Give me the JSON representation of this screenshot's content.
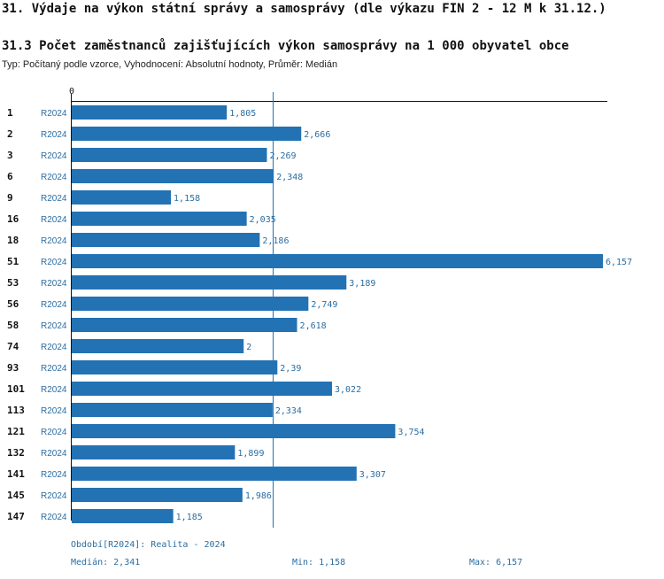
{
  "page": {
    "title": "31. Výdaje na výkon státní správy a samosprávy (dle výkazu FIN 2 - 12 M k 31.12.)",
    "subtitle": "31.3 Počet zaměstnanců zajišťujících výkon samosprávy na 1 000 obyvatel obce",
    "type_line": "Typ: Počítaný podle vzorce, Vyhodnocení: Absolutní hodnoty, Průměr: Medián"
  },
  "colors": {
    "bar": "#2272b4",
    "period_text": "#2a6ea3",
    "median_line": "#2272b4"
  },
  "chart_data": {
    "type": "bar",
    "orientation": "horizontal",
    "axis_zero_label": "0",
    "series_name": "R2024",
    "categories": [
      "1",
      "2",
      "3",
      "6",
      "9",
      "16",
      "18",
      "51",
      "53",
      "56",
      "58",
      "74",
      "93",
      "101",
      "113",
      "121",
      "132",
      "141",
      "145",
      "147"
    ],
    "values": [
      1.805,
      2.666,
      2.269,
      2.348,
      1.158,
      2.035,
      2.186,
      6.157,
      3.189,
      2.749,
      2.618,
      2.0,
      2.39,
      3.022,
      2.334,
      3.754,
      1.899,
      3.307,
      1.986,
      1.185
    ],
    "value_labels": [
      "1,805",
      "2,666",
      "2,269",
      "2,348",
      "1,158",
      "2,035",
      "2,186",
      "6,157",
      "3,189",
      "2,749",
      "2,618",
      "2",
      "2,39",
      "3,022",
      "2,334",
      "3,754",
      "1,899",
      "3,307",
      "1,986",
      "1,185"
    ],
    "median": 2.341,
    "xlim": [
      0,
      6.157
    ]
  },
  "footer": {
    "period": "Období[R2024]: Realita - 2024",
    "median": "Medián: 2,341",
    "min": "Min: 1,158",
    "max": "Max: 6,157"
  }
}
